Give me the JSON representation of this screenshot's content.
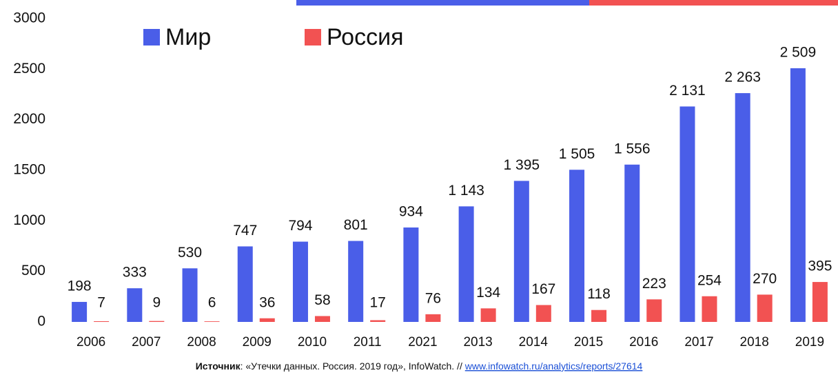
{
  "chart_data": {
    "type": "bar",
    "categories": [
      "2006",
      "2007",
      "2008",
      "2009",
      "2010",
      "2011",
      "2021",
      "2013",
      "2014",
      "2015",
      "2016",
      "2017",
      "2018",
      "2019"
    ],
    "series": [
      {
        "name": "Мир",
        "color": "#4a5ee8",
        "values": [
          198,
          333,
          530,
          747,
          794,
          801,
          934,
          1143,
          1395,
          1505,
          1556,
          2131,
          2263,
          2509
        ],
        "value_labels": [
          "198",
          "333",
          "530",
          "747",
          "794",
          "801",
          "934",
          "1 143",
          "1 395",
          "1 505",
          "1 556",
          "2 131",
          "2 263",
          "2 509"
        ]
      },
      {
        "name": "Россия",
        "color": "#f25252",
        "values": [
          7,
          9,
          6,
          36,
          58,
          17,
          76,
          134,
          167,
          118,
          223,
          254,
          270,
          395
        ]
      }
    ],
    "ylim": [
      0,
      3000
    ],
    "yticks": [
      0,
      500,
      1000,
      1500,
      2000,
      2500,
      3000
    ],
    "grid": false,
    "legend": "top-left",
    "source": {
      "label": "Источник",
      "text": ": «Утечки данных. Россия. 2019 год», InfoWatch. // ",
      "link": "www.infowatch.ru/analytics/reports/27614"
    }
  }
}
